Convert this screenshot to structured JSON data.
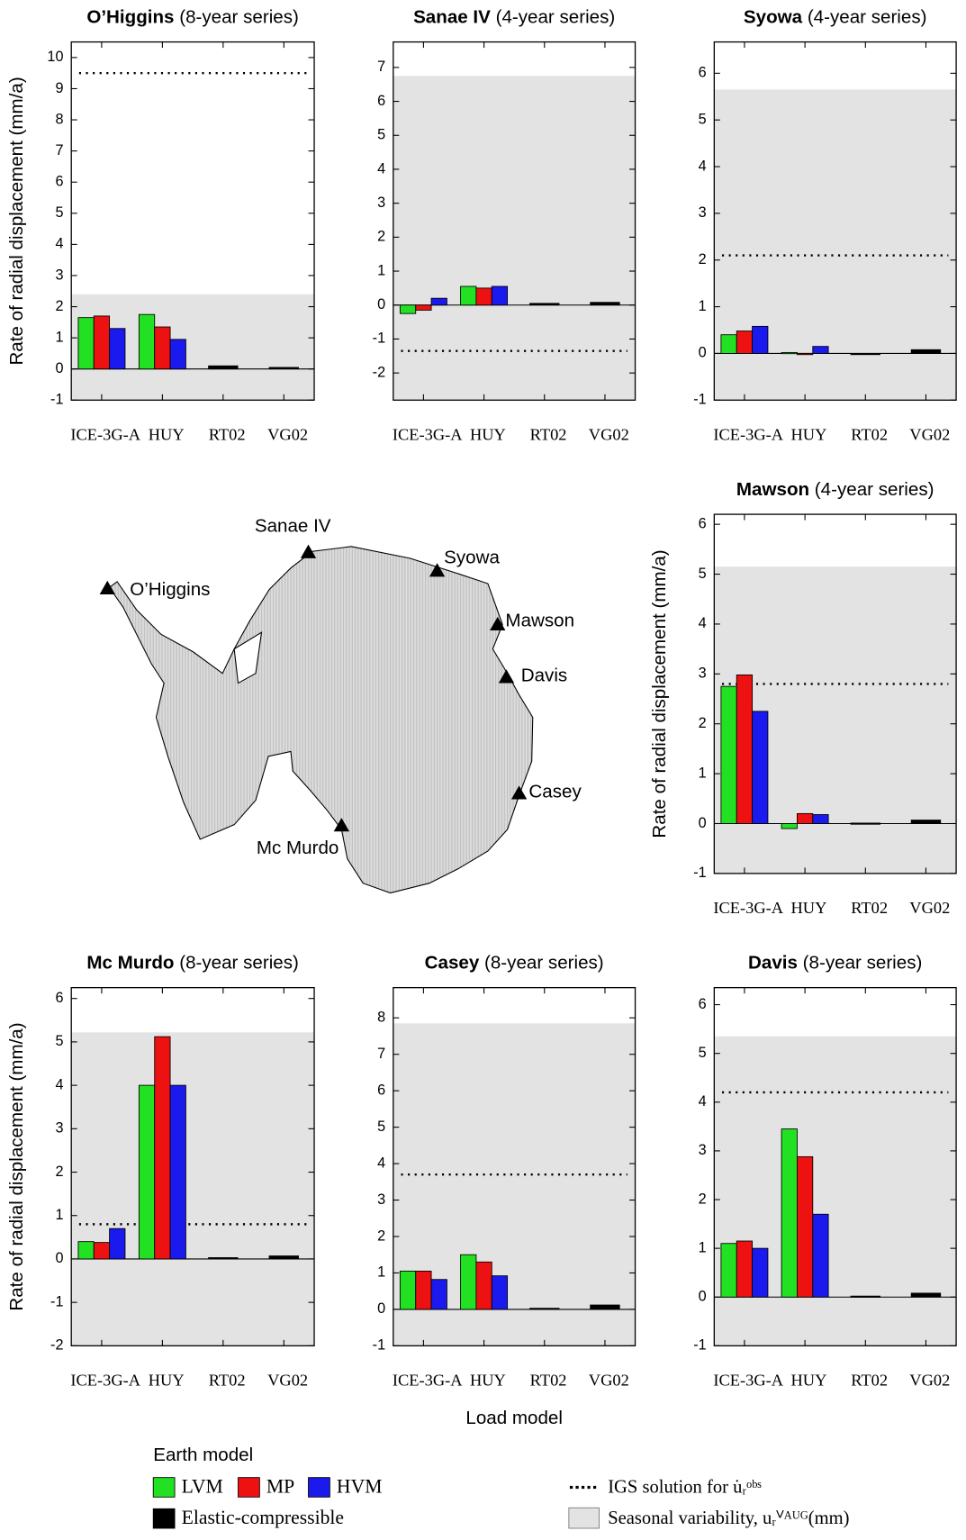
{
  "chart_data": [
    {
      "type": "bar",
      "title": "O’Higgins",
      "subtitle": "(8-year series)",
      "ylabel": "Rate of radial displacement (mm/a)",
      "categories": [
        "ICE-3G-A",
        "HUY",
        "RT02",
        "VG02"
      ],
      "series": [
        {
          "name": "LVM",
          "color": "#22e022",
          "values": [
            1.65,
            1.75,
            null,
            null
          ]
        },
        {
          "name": "MP",
          "color": "#ee1111",
          "values": [
            1.7,
            1.35,
            null,
            null
          ]
        },
        {
          "name": "HVM",
          "color": "#1a1aee",
          "values": [
            1.3,
            0.95,
            null,
            null
          ]
        },
        {
          "name": "Elastic-compressible",
          "color": "#000000",
          "values": [
            null,
            null,
            0.1,
            0.05
          ]
        }
      ],
      "seasonal_variability": 2.4,
      "igs_rate": 9.5,
      "ylim": [
        -1,
        10.5
      ],
      "yticks": [
        -1,
        0,
        1,
        2,
        3,
        4,
        5,
        6,
        7,
        8,
        9,
        10
      ]
    },
    {
      "type": "bar",
      "title": "Sanae IV",
      "subtitle": "(4-year series)",
      "categories": [
        "ICE-3G-A",
        "HUY",
        "RT02",
        "VG02"
      ],
      "series": [
        {
          "name": "LVM",
          "color": "#22e022",
          "values": [
            -0.25,
            0.55,
            null,
            null
          ]
        },
        {
          "name": "MP",
          "color": "#ee1111",
          "values": [
            -0.15,
            0.5,
            null,
            null
          ]
        },
        {
          "name": "HVM",
          "color": "#1a1aee",
          "values": [
            0.2,
            0.55,
            null,
            null
          ]
        },
        {
          "name": "Elastic-compressible",
          "color": "#000000",
          "values": [
            null,
            null,
            0.05,
            0.08
          ]
        }
      ],
      "seasonal_variability": 6.75,
      "igs_rate": -1.35,
      "ylim": [
        -2.8,
        7.75
      ],
      "yticks": [
        -2,
        -1,
        0,
        1,
        2,
        3,
        4,
        5,
        6,
        7
      ]
    },
    {
      "type": "bar",
      "title": "Syowa",
      "subtitle": "(4-year series)",
      "categories": [
        "ICE-3G-A",
        "HUY",
        "RT02",
        "VG02"
      ],
      "series": [
        {
          "name": "LVM",
          "color": "#22e022",
          "values": [
            0.4,
            0.02,
            null,
            null
          ]
        },
        {
          "name": "MP",
          "color": "#ee1111",
          "values": [
            0.48,
            0,
            null,
            null
          ]
        },
        {
          "name": "HVM",
          "color": "#1a1aee",
          "values": [
            0.58,
            0.15,
            null,
            null
          ]
        },
        {
          "name": "Elastic-compressible",
          "color": "#000000",
          "values": [
            null,
            null,
            -0.02,
            0.08
          ]
        }
      ],
      "seasonal_variability": 5.65,
      "igs_rate": 2.1,
      "ylim": [
        -1,
        6.67
      ],
      "yticks": [
        -1,
        0,
        1,
        2,
        3,
        4,
        5,
        6
      ]
    },
    {
      "type": "bar",
      "title": "Mawson",
      "subtitle": "(4-year series)",
      "ylabel": "Rate of radial displacement (mm/a)",
      "categories": [
        "ICE-3G-A",
        "HUY",
        "RT02",
        "VG02"
      ],
      "series": [
        {
          "name": "LVM",
          "color": "#22e022",
          "values": [
            2.75,
            -0.1,
            null,
            null
          ]
        },
        {
          "name": "MP",
          "color": "#ee1111",
          "values": [
            2.98,
            0.2,
            null,
            null
          ]
        },
        {
          "name": "HVM",
          "color": "#1a1aee",
          "values": [
            2.25,
            0.18,
            null,
            null
          ]
        },
        {
          "name": "Elastic-compressible",
          "color": "#000000",
          "values": [
            null,
            null,
            0.01,
            0.07
          ]
        }
      ],
      "seasonal_variability": 5.15,
      "igs_rate": 2.8,
      "ylim": [
        -1,
        6.2
      ],
      "yticks": [
        -1,
        0,
        1,
        2,
        3,
        4,
        5,
        6
      ]
    },
    {
      "type": "bar",
      "title": "Mc Murdo",
      "subtitle": "(8-year series)",
      "ylabel": "Rate of radial displacement (mm/a)",
      "categories": [
        "ICE-3G-A",
        "HUY",
        "RT02",
        "VG02"
      ],
      "series": [
        {
          "name": "LVM",
          "color": "#22e022",
          "values": [
            0.4,
            4.0,
            null,
            null
          ]
        },
        {
          "name": "MP",
          "color": "#ee1111",
          "values": [
            0.38,
            5.12,
            null,
            null
          ]
        },
        {
          "name": "HVM",
          "color": "#1a1aee",
          "values": [
            0.7,
            4.0,
            null,
            null
          ]
        },
        {
          "name": "Elastic-compressible",
          "color": "#000000",
          "values": [
            null,
            null,
            0.03,
            0.07
          ]
        }
      ],
      "seasonal_variability": 5.22,
      "igs_rate": 0.8,
      "ylim": [
        -2,
        6.25
      ],
      "yticks": [
        -2,
        -1,
        0,
        1,
        2,
        3,
        4,
        5,
        6
      ]
    },
    {
      "type": "bar",
      "title": "Casey",
      "subtitle": "(8-year series)",
      "xlabel": "Load model",
      "categories": [
        "ICE-3G-A",
        "HUY",
        "RT02",
        "VG02"
      ],
      "series": [
        {
          "name": "LVM",
          "color": "#22e022",
          "values": [
            1.05,
            1.5,
            null,
            null
          ]
        },
        {
          "name": "MP",
          "color": "#ee1111",
          "values": [
            1.05,
            1.3,
            null,
            null
          ]
        },
        {
          "name": "HVM",
          "color": "#1a1aee",
          "values": [
            0.82,
            0.92,
            null,
            null
          ]
        },
        {
          "name": "Elastic-compressible",
          "color": "#000000",
          "values": [
            null,
            null,
            0.03,
            0.12
          ]
        }
      ],
      "seasonal_variability": 7.85,
      "igs_rate": 3.7,
      "ylim": [
        -1,
        8.83
      ],
      "yticks": [
        -1,
        0,
        1,
        2,
        3,
        4,
        5,
        6,
        7,
        8
      ]
    },
    {
      "type": "bar",
      "title": "Davis",
      "subtitle": "(8-year series)",
      "categories": [
        "ICE-3G-A",
        "HUY",
        "RT02",
        "VG02"
      ],
      "series": [
        {
          "name": "LVM",
          "color": "#22e022",
          "values": [
            1.1,
            3.45,
            null,
            null
          ]
        },
        {
          "name": "MP",
          "color": "#ee1111",
          "values": [
            1.15,
            2.88,
            null,
            null
          ]
        },
        {
          "name": "HVM",
          "color": "#1a1aee",
          "values": [
            1.0,
            1.7,
            null,
            null
          ]
        },
        {
          "name": "Elastic-compressible",
          "color": "#000000",
          "values": [
            null,
            null,
            0.02,
            0.08
          ]
        }
      ],
      "seasonal_variability": 5.35,
      "igs_rate": 4.2,
      "ylim": [
        -1,
        6.35
      ],
      "yticks": [
        -1,
        0,
        1,
        2,
        3,
        4,
        5,
        6
      ]
    }
  ],
  "map": {
    "stations": [
      "Sanae IV",
      "Syowa",
      "O’Higgins",
      "Mawson",
      "Davis",
      "Casey",
      "Mc Murdo"
    ]
  },
  "legend": {
    "title": "Earth model",
    "igs": "IGS solution for u̇ᵣᵒᵇˢ",
    "seasonal": "Seasonal variability, uᵣⱽᴬᵁᴳ(mm)"
  }
}
